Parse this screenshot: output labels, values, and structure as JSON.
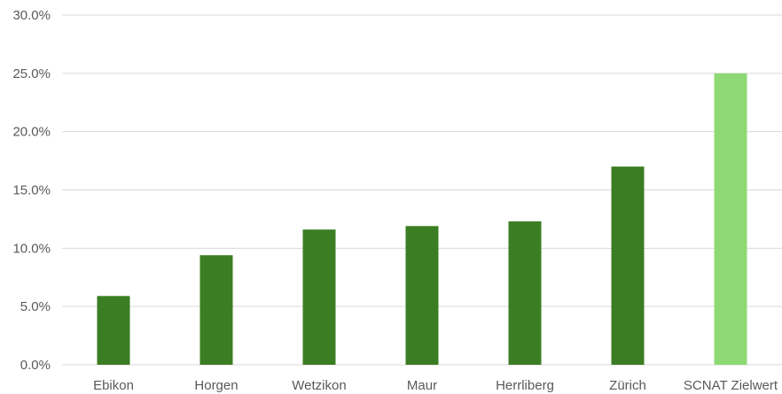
{
  "chart_data": {
    "type": "bar",
    "categories": [
      "Ebikon",
      "Horgen",
      "Wetzikon",
      "Maur",
      "Herrliberg",
      "Zürich",
      "SCNAT Zielwert"
    ],
    "values": [
      5.9,
      9.4,
      11.6,
      11.9,
      12.3,
      17.0,
      25.0
    ],
    "bar_colors": [
      "#3b7d23",
      "#3b7d23",
      "#3b7d23",
      "#3b7d23",
      "#3b7d23",
      "#3b7d23",
      "#8ed973"
    ],
    "y_unit": "percent",
    "y_tick_labels": [
      "0.0%",
      "5.0%",
      "10.0%",
      "15.0%",
      "20.0%",
      "25.0%",
      "30.0%"
    ],
    "y_ticks": [
      0,
      5,
      10,
      15,
      20,
      25,
      30
    ],
    "ylim": [
      0,
      30
    ],
    "grid": true,
    "legend": "none"
  }
}
